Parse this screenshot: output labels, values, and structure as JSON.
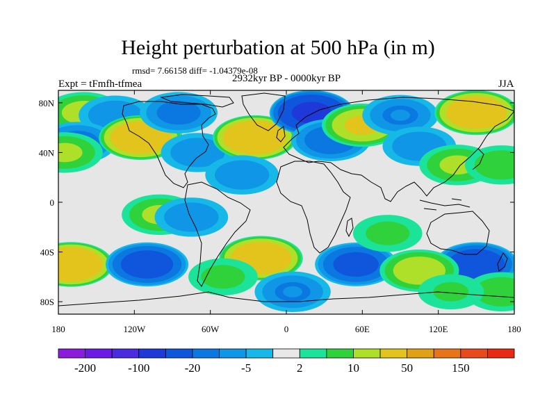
{
  "header": {
    "title": "Height perturbation at 500 hPa (in m)",
    "stats": "rmsd= 7.66158 diff= -1.04379e-08",
    "subtitle": "2932kyr BP - 0000kyr BP",
    "left_label": "Expt = tFmfh-tfmea",
    "right_label": "JJA"
  },
  "map": {
    "projection": "cylindrical equidistant",
    "lat_ticks": [
      "80N",
      "40N",
      "0",
      "40S",
      "80S"
    ],
    "lon_ticks": [
      "180",
      "120W",
      "60W",
      "0",
      "60E",
      "120E",
      "180"
    ],
    "background_color": "#e6e6e6",
    "coastline_color": "#000000",
    "anomalies": [
      {
        "lon": -160,
        "lat": 72,
        "value": 12
      },
      {
        "lon": -135,
        "lat": 70,
        "value": -8
      },
      {
        "lon": -165,
        "lat": 48,
        "value": -12
      },
      {
        "lon": -175,
        "lat": 40,
        "value": 10
      },
      {
        "lon": -115,
        "lat": 52,
        "value": 40
      },
      {
        "lon": -85,
        "lat": 72,
        "value": -12
      },
      {
        "lon": -70,
        "lat": 40,
        "value": -8
      },
      {
        "lon": -25,
        "lat": 52,
        "value": 45
      },
      {
        "lon": -35,
        "lat": 22,
        "value": -8
      },
      {
        "lon": 20,
        "lat": 72,
        "value": -55
      },
      {
        "lon": 35,
        "lat": 50,
        "value": -15
      },
      {
        "lon": 60,
        "lat": 62,
        "value": 20
      },
      {
        "lon": 90,
        "lat": 70,
        "value": -10
      },
      {
        "lon": 105,
        "lat": 45,
        "value": -8
      },
      {
        "lon": 150,
        "lat": 72,
        "value": 40
      },
      {
        "lon": 135,
        "lat": 30,
        "value": 10
      },
      {
        "lon": 170,
        "lat": 30,
        "value": 8
      },
      {
        "lon": -170,
        "lat": -50,
        "value": 45
      },
      {
        "lon": -110,
        "lat": -50,
        "value": -30
      },
      {
        "lon": -100,
        "lat": -10,
        "value": 10
      },
      {
        "lon": -75,
        "lat": -12,
        "value": -8
      },
      {
        "lon": -20,
        "lat": -45,
        "value": 40
      },
      {
        "lon": -50,
        "lat": -60,
        "value": 6
      },
      {
        "lon": 5,
        "lat": -72,
        "value": -10
      },
      {
        "lon": 55,
        "lat": -50,
        "value": -25
      },
      {
        "lon": 80,
        "lat": -25,
        "value": 6
      },
      {
        "lon": 150,
        "lat": -50,
        "value": -35
      },
      {
        "lon": 105,
        "lat": -55,
        "value": 15
      },
      {
        "lon": 170,
        "lat": -72,
        "value": 8
      },
      {
        "lon": 130,
        "lat": -72,
        "value": 5
      }
    ]
  },
  "colorbar": {
    "levels": [
      "-200",
      "-100",
      "-20",
      "-5",
      "2",
      "10",
      "50",
      "150"
    ],
    "colors": [
      "#8c1cdc",
      "#6b1ae6",
      "#4a2be0",
      "#1f38d8",
      "#0f56dc",
      "#0a78e0",
      "#0f96e6",
      "#16b8e8",
      "#e8e8e8",
      "#1ce39a",
      "#2fd23a",
      "#aee02a",
      "#e2c41c",
      "#e2a016",
      "#e8741a",
      "#e84a1c",
      "#e82a14"
    ]
  }
}
